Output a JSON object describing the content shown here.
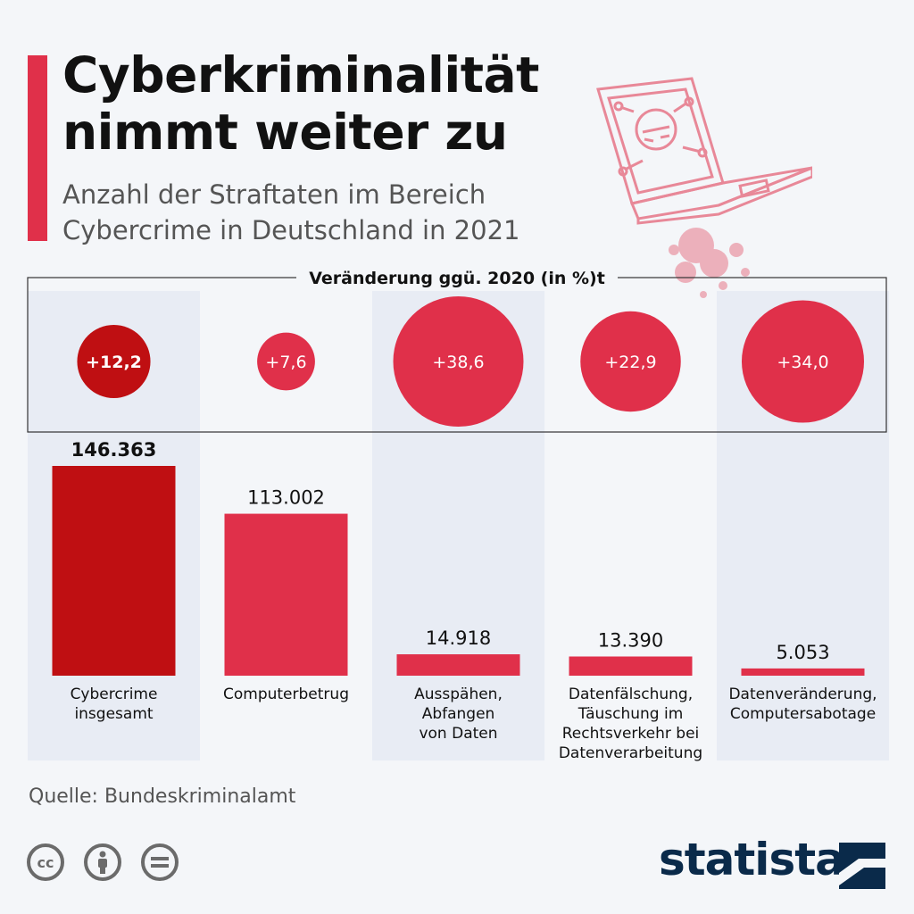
{
  "header": {
    "title_line1": "Cyberkriminalität",
    "title_line2": "nimmt weiter zu",
    "subtitle_line1": "Anzahl der Straftaten im Bereich",
    "subtitle_line2": "Cybercrime in Deutschland in 2021"
  },
  "footer": {
    "source": "Quelle: Bundeskriminalamt",
    "logo_text": "statista",
    "license_icons": [
      "cc-icon",
      "attribution-icon",
      "no-derivatives-icon"
    ]
  },
  "colors": {
    "accent": "#e0304a",
    "highlight": "#bf0f12",
    "column_bg": "#e8ecf4",
    "logo": "#0a2a4a"
  },
  "chart_data": {
    "type": "bar",
    "categories": [
      [
        "Cybercrime",
        "insgesamt"
      ],
      [
        "Computerbetrug"
      ],
      [
        "Ausspähen,",
        "Abfangen",
        "von Daten"
      ],
      [
        "Datenfälschung,",
        "Täuschung im",
        "Rechtsverkehr bei",
        "Datenverarbeitung"
      ],
      [
        "Datenveränderung,",
        "Computersabotage"
      ]
    ],
    "values": [
      146363,
      113002,
      14918,
      13390,
      5053
    ],
    "value_labels": [
      "146.363",
      "113.002",
      "14.918",
      "13.390",
      "5.053"
    ],
    "change_title": "Veränderung ggü. 2020 (in %)t",
    "changes": [
      12.2,
      7.6,
      38.6,
      22.9,
      34.0
    ],
    "change_labels": [
      "+12,2",
      "+7,6",
      "+38,6",
      "+22,9",
      "+34,0"
    ],
    "highlight_index": 0
  }
}
